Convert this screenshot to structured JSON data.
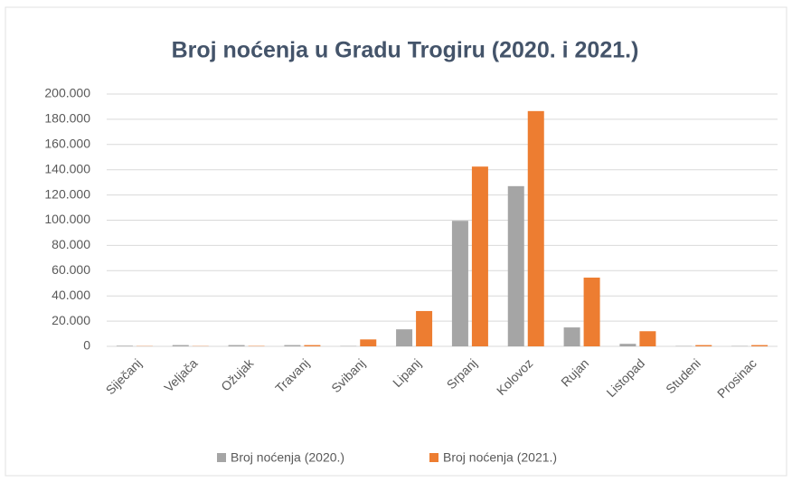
{
  "chart_data": {
    "type": "bar",
    "title": "Broj noćenja u Gradu Trogiru (2020. i 2021.)",
    "categories": [
      "Siječanj",
      "Veljača",
      "Ožujak",
      "Travanj",
      "Svibanj",
      "Lipanj",
      "Srpanj",
      "Kolovoz",
      "Rujan",
      "Listopad",
      "Studeni",
      "Prosinac"
    ],
    "series": [
      {
        "name": "Broj noćenja (2020.)",
        "color": "#a5a5a5",
        "values": [
          500,
          1000,
          1000,
          1000,
          300,
          13500,
          99500,
          127000,
          15000,
          2000,
          300,
          300
        ]
      },
      {
        "name": "Broj noćenja (2021.)",
        "color": "#ed7d31",
        "values": [
          200,
          200,
          300,
          1000,
          5500,
          28000,
          142500,
          186500,
          54500,
          12000,
          1000,
          1000
        ]
      }
    ],
    "ylim": [
      0,
      200000
    ],
    "yticks": [
      0,
      {
        "value": 20000,
        "label": "20.000"
      },
      {
        "value": 40000,
        "label": "40.000"
      },
      {
        "value": 60000,
        "label": "60.000"
      },
      {
        "value": 80000,
        "label": "80.000"
      },
      {
        "value": 100000,
        "label": "100.000"
      },
      {
        "value": 120000,
        "label": "120.000"
      },
      {
        "value": 140000,
        "label": "140.000"
      },
      {
        "value": 160000,
        "label": "160.000"
      },
      {
        "value": 180000,
        "label": "180.000"
      },
      {
        "value": 200000,
        "label": "200.000"
      }
    ],
    "grid": true,
    "legend": "bottom"
  }
}
